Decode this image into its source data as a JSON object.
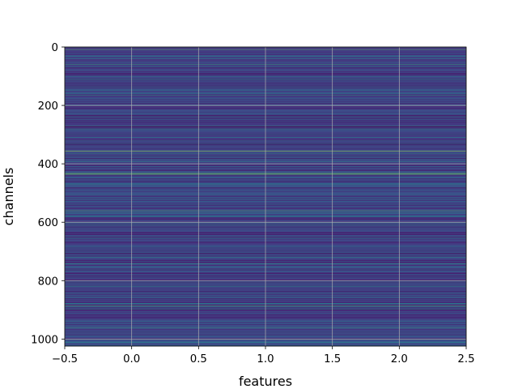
{
  "chart_data": {
    "type": "heatmap",
    "title": "",
    "xlabel": "features",
    "ylabel": "channels",
    "xlim": [
      -0.5,
      2.5
    ],
    "ylim": [
      1024,
      0
    ],
    "y_inverted": true,
    "n_rows": 1024,
    "n_cols": 3,
    "colormap": "viridis",
    "grid": true,
    "xticks": [
      -0.5,
      0.0,
      0.5,
      1.0,
      1.5,
      2.0,
      2.5
    ],
    "xtick_labels": [
      "−0.5",
      "0.0",
      "0.5",
      "1.0",
      "1.5",
      "2.0",
      "2.5"
    ],
    "yticks": [
      0,
      200,
      400,
      600,
      800,
      1000
    ],
    "ytick_labels": [
      "0",
      "200",
      "400",
      "600",
      "800",
      "1000"
    ],
    "notable_rows": [
      {
        "row": 8,
        "level": 0.75
      },
      {
        "row": 30,
        "level": 0.55
      },
      {
        "row": 60,
        "level": 0.65
      },
      {
        "row": 100,
        "level": 0.5
      },
      {
        "row": 165,
        "level": 0.6
      },
      {
        "row": 200,
        "level": 0.55
      },
      {
        "row": 270,
        "level": 0.6
      },
      {
        "row": 280,
        "level": 0.55
      },
      {
        "row": 310,
        "level": 0.5
      },
      {
        "row": 356,
        "level": 0.95
      },
      {
        "row": 365,
        "level": 0.55
      },
      {
        "row": 392,
        "level": 0.5
      },
      {
        "row": 430,
        "level": 0.7
      },
      {
        "row": 433,
        "level": 0.85
      },
      {
        "row": 436,
        "level": 0.7
      },
      {
        "row": 470,
        "level": 0.55
      },
      {
        "row": 520,
        "level": 0.5
      },
      {
        "row": 560,
        "level": 0.72
      },
      {
        "row": 568,
        "level": 0.6
      },
      {
        "row": 610,
        "level": 0.5
      },
      {
        "row": 650,
        "level": 0.5
      },
      {
        "row": 720,
        "level": 0.55
      },
      {
        "row": 742,
        "level": 0.6
      },
      {
        "row": 760,
        "level": 0.45
      },
      {
        "row": 820,
        "level": 0.5
      },
      {
        "row": 885,
        "level": 0.75
      },
      {
        "row": 898,
        "level": 0.55
      },
      {
        "row": 940,
        "level": 0.5
      },
      {
        "row": 960,
        "level": 0.65
      },
      {
        "row": 1000,
        "level": 0.6
      },
      {
        "row": 1010,
        "level": 0.5
      }
    ]
  },
  "colors": {
    "viridis_stops": [
      "#440154",
      "#482878",
      "#3e4989",
      "#31688e",
      "#26828e",
      "#1f9e89",
      "#35b779",
      "#6ece58",
      "#b5de2b",
      "#fde725"
    ],
    "grid": "#b0b0b0",
    "axes": "#000000"
  }
}
